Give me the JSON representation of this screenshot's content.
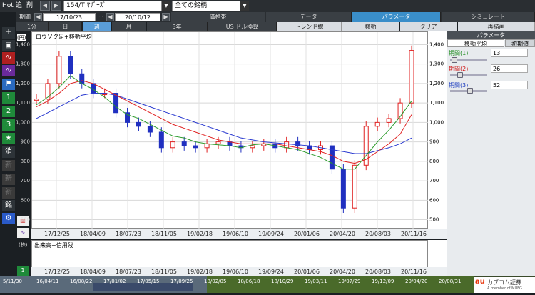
{
  "topbar": {
    "hot": "Hot",
    "b1": "追",
    "b2": "削",
    "stock": "154/T ﾏｻﾞｰｽﾞ",
    "universe": "全ての銘柄",
    "kakakutai": "価格帯",
    "data": "データ",
    "params": "パラメータ",
    "simulate": "シミュレート"
  },
  "range": {
    "label": "期間",
    "from": "17/10/23",
    "sep": "~",
    "to": "20/10/12"
  },
  "periods": [
    "1分",
    "日",
    "週",
    "月",
    "3年",
    "US ドル換算"
  ],
  "tools": [
    "トレンド線",
    "移動",
    "クリア",
    "再描画"
  ],
  "chart": {
    "title": "ロウソク足+移動平均",
    "y_ticks": [
      "1,400",
      "1,300",
      "1,200",
      "1,100",
      "1,000",
      "900",
      "800",
      "700",
      "600",
      "500"
    ],
    "x_ticks": [
      "17/12/25",
      "18/04/09",
      "18/07/23",
      "18/11/05",
      "19/02/18",
      "19/06/10",
      "19/09/24",
      "20/01/06",
      "20/04/20",
      "20/08/03",
      "20/11/16"
    ],
    "vol_title": "出来高+信用残",
    "vol_unit": "(株)",
    "unit": "(円)"
  },
  "panel": {
    "title": "パラメータ",
    "tab1": "移動平均",
    "tab2": "初期値",
    "p1_label": "期間(1)",
    "p1_value": "13",
    "p2_label": "期間(2)",
    "p2_value": "26",
    "p3_label": "期間(3)",
    "p3_value": "52"
  },
  "timeline": [
    "5/11/30",
    "16/04/11",
    "16/08/22",
    "17/01/02",
    "17/05/15",
    "17/09/25",
    "18/02/05",
    "18/06/18",
    "18/10/29",
    "19/03/11",
    "19/07/29",
    "19/12/09",
    "20/04/20",
    "20/08/31"
  ],
  "logo_text": "カブコム証券",
  "logo_sub": "A member of MUFG",
  "colors": {
    "ma13": "#2a9a2a",
    "ma26": "#e02020",
    "ma52": "#2a3ad0",
    "up": "#e02020",
    "down": "#2030c0"
  },
  "chart_data": {
    "type": "candlestick",
    "ylim": [
      480,
      1420
    ],
    "ma13": [
      1090,
      1130,
      1180,
      1240,
      1200,
      1170,
      1130,
      1080,
      1040,
      1020,
      990,
      960,
      930,
      920,
      900,
      890,
      885,
      880,
      870,
      885,
      890,
      880,
      870,
      860,
      840,
      820,
      790,
      760,
      760,
      830,
      900,
      960,
      1030,
      1110
    ],
    "ma26": [
      1080,
      1110,
      1150,
      1200,
      1215,
      1200,
      1170,
      1140,
      1110,
      1080,
      1050,
      1020,
      990,
      970,
      950,
      930,
      910,
      900,
      890,
      890,
      890,
      890,
      880,
      870,
      860,
      850,
      830,
      800,
      790,
      810,
      850,
      890,
      940,
      1040
    ],
    "ma52": [
      1020,
      1050,
      1080,
      1110,
      1140,
      1150,
      1150,
      1140,
      1120,
      1100,
      1080,
      1060,
      1040,
      1020,
      1000,
      980,
      960,
      940,
      920,
      910,
      900,
      895,
      890,
      885,
      880,
      870,
      860,
      850,
      840,
      840,
      855,
      870,
      890,
      920
    ],
    "close": [
      1120,
      1200,
      1340,
      1250,
      1200,
      1150,
      1150,
      1050,
      1000,
      980,
      950,
      870,
      900,
      880,
      870,
      890,
      900,
      880,
      870,
      880,
      890,
      870,
      900,
      880,
      860,
      880,
      760,
      560,
      780,
      980,
      1000,
      1020,
      1100,
      1370
    ]
  }
}
